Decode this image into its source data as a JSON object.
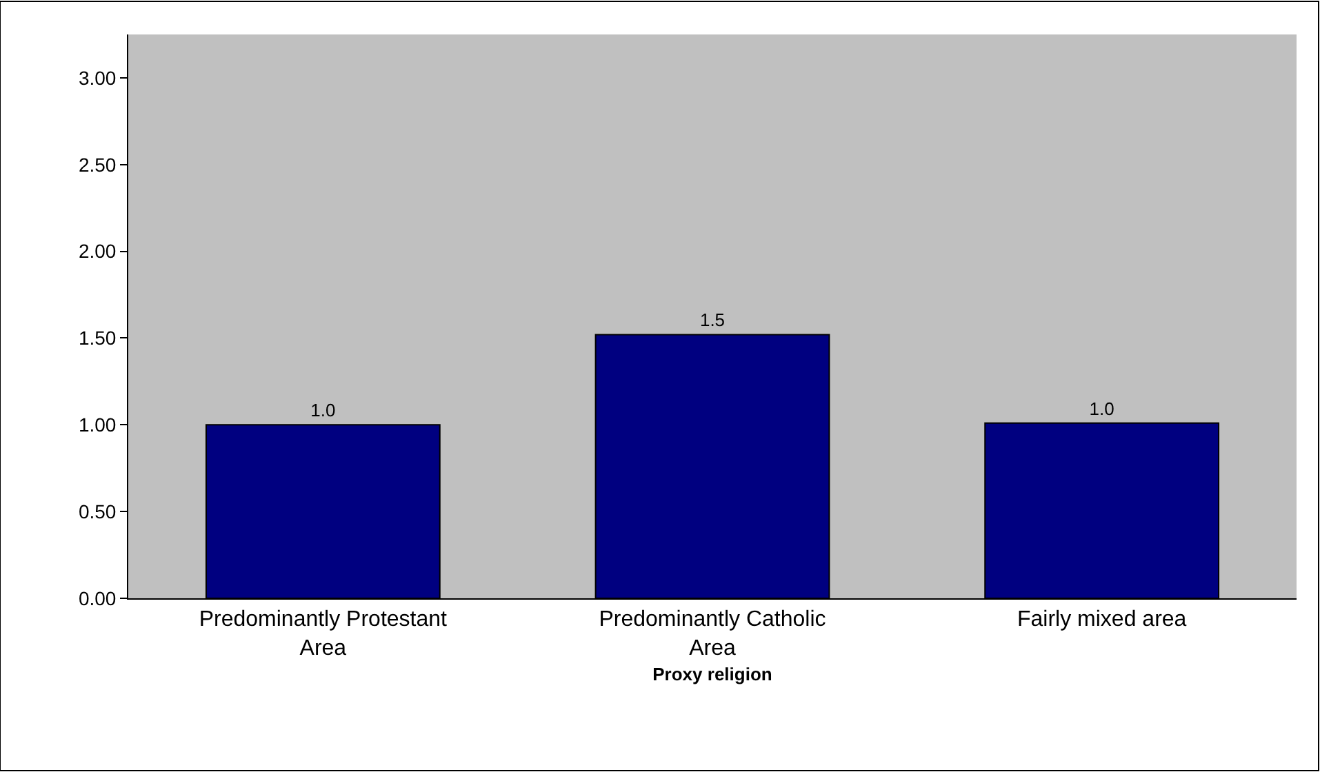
{
  "chart_data": {
    "type": "bar",
    "xlabel": "Proxy religion",
    "categories": [
      "Predominantly Protestant Area",
      "Predominantly Catholic Area",
      "Fairly mixed area"
    ],
    "values": [
      1.0,
      1.52,
      1.01
    ],
    "value_labels": [
      "1.0",
      "1.5",
      "1.0"
    ],
    "color": "#000080",
    "ylim": [
      0,
      3.25
    ],
    "yticks": [
      {
        "value": 0,
        "label": "0.00"
      },
      {
        "value": 0.5,
        "label": "0.50"
      },
      {
        "value": 1,
        "label": "1.00"
      },
      {
        "value": 1.5,
        "label": "1.50"
      },
      {
        "value": 2,
        "label": "2.00"
      },
      {
        "value": 2.5,
        "label": "2.50"
      },
      {
        "value": 3,
        "label": "3.00"
      }
    ],
    "grid": false,
    "legend": false
  }
}
